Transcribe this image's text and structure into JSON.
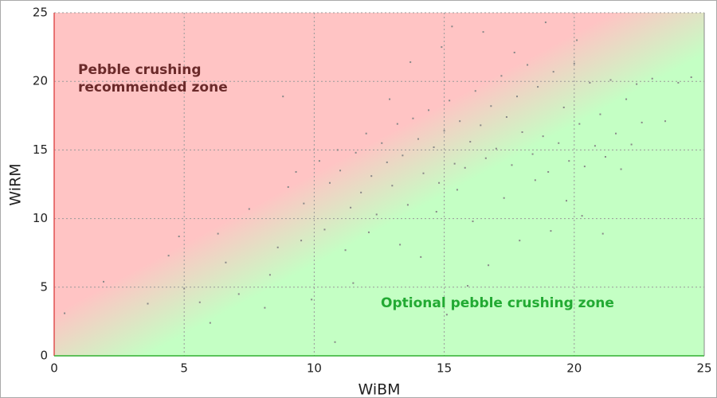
{
  "chart_data": {
    "type": "scatter",
    "x_label": "WiBM",
    "y_label": "WiRM",
    "xlim": [
      0,
      25
    ],
    "ylim": [
      0,
      25
    ],
    "xticks": [
      0,
      5,
      10,
      15,
      20,
      25
    ],
    "yticks": [
      0,
      5,
      10,
      15,
      20,
      25
    ],
    "grid": true,
    "color": "#888888",
    "zones": {
      "upper": "#ffc4c4",
      "lower": "#c4ffc4"
    },
    "annotations": [
      {
        "lines": [
          "Pebble crushing",
          "recommended zone"
        ],
        "color": "#6b2a2a"
      },
      {
        "lines": [
          "Optional pebble crushing zone"
        ],
        "color": "#22aa33"
      }
    ],
    "x": [
      0.4,
      1.9,
      4.4,
      4.8,
      5.0,
      5.6,
      6.3,
      6.6,
      7.1,
      7.5,
      8.1,
      8.6,
      8.8,
      9.0,
      9.3,
      9.6,
      9.9,
      10.2,
      10.4,
      10.6,
      10.9,
      11.0,
      11.2,
      11.4,
      11.6,
      11.8,
      12.0,
      12.2,
      12.4,
      12.6,
      12.8,
      13.0,
      13.2,
      13.4,
      13.6,
      13.8,
      14.0,
      14.2,
      14.4,
      14.6,
      14.8,
      15.0,
      15.2,
      15.4,
      15.6,
      15.8,
      16.0,
      16.2,
      16.4,
      16.6,
      16.8,
      17.0,
      17.2,
      17.4,
      17.6,
      17.8,
      18.0,
      18.2,
      18.4,
      18.6,
      18.8,
      19.0,
      19.2,
      19.4,
      19.6,
      19.8,
      20.0,
      20.2,
      20.4,
      20.6,
      20.8,
      21.0,
      21.2,
      21.4,
      21.6,
      21.8,
      22.0,
      22.2,
      22.4,
      22.6,
      23.0,
      23.5,
      24.0,
      24.5,
      12.1,
      13.3,
      14.1,
      14.7,
      15.1,
      15.5,
      16.1,
      16.7,
      17.3,
      17.9,
      18.5,
      19.1,
      19.7,
      20.3,
      21.1,
      14.9,
      15.3,
      13.7,
      12.9,
      11.5,
      10.8,
      16.5,
      17.7,
      18.9,
      20.1,
      9.5,
      8.3,
      6.0,
      3.6,
      15.9
    ],
    "values": [
      3.1,
      5.4,
      7.3,
      8.7,
      4.9,
      3.9,
      8.9,
      6.8,
      4.5,
      10.7,
      3.5,
      7.9,
      18.9,
      12.3,
      13.4,
      11.1,
      4.1,
      14.2,
      9.2,
      12.6,
      15.0,
      13.5,
      7.7,
      10.8,
      14.8,
      11.9,
      16.2,
      13.1,
      10.3,
      15.5,
      14.1,
      12.4,
      16.9,
      14.6,
      11.0,
      17.3,
      15.8,
      13.3,
      17.9,
      15.2,
      12.6,
      16.4,
      18.6,
      14.0,
      17.1,
      13.7,
      15.6,
      19.3,
      16.8,
      14.4,
      18.2,
      15.1,
      20.4,
      17.4,
      13.9,
      18.9,
      16.3,
      21.2,
      14.7,
      19.6,
      16.0,
      13.4,
      20.7,
      15.5,
      18.1,
      14.2,
      21.3,
      16.9,
      13.8,
      19.9,
      15.3,
      17.6,
      14.5,
      20.1,
      16.2,
      13.6,
      18.7,
      15.4,
      19.8,
      17.0,
      20.2,
      17.1,
      19.9,
      20.3,
      9.0,
      8.1,
      7.2,
      10.5,
      3.0,
      12.1,
      9.8,
      6.6,
      11.5,
      8.4,
      12.8,
      9.1,
      11.3,
      10.2,
      8.9,
      22.5,
      24.0,
      21.4,
      18.7,
      5.3,
      1.0,
      23.6,
      22.1,
      24.3,
      23.0,
      8.4,
      5.9,
      2.4,
      3.8,
      5.1
    ]
  }
}
